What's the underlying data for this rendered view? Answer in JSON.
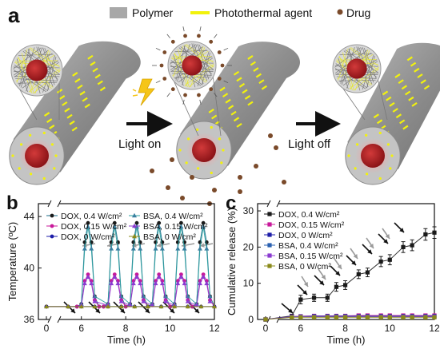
{
  "panels": {
    "a": {
      "letter": "a",
      "legend": [
        {
          "label": "Polymer",
          "color": "#a8a8a8",
          "icon": "gray-rectangle"
        },
        {
          "label": "Photothermal agent",
          "color": "#f2f20c",
          "icon": "yellow-dash"
        },
        {
          "label": "Drug",
          "color": "#7a4a2a",
          "icon": "brown-dot"
        }
      ],
      "step_labels": [
        "Light on",
        "Light off"
      ],
      "colors": {
        "fiber": "#8d8d8d",
        "fiber_end": "#b5b5b5",
        "core": "#b01f26",
        "agent": "#f2f20c",
        "drug": "#7a4a2a",
        "lightning": "#f5c518"
      }
    },
    "b": {
      "letter": "b"
    },
    "c": {
      "letter": "c"
    }
  },
  "chart_data": [
    {
      "panel": "b",
      "type": "line",
      "xlabel": "Time (h)",
      "ylabel": "Temperature (ºC)",
      "x_ticks": [
        0,
        6,
        8,
        10,
        12
      ],
      "y_ticks": [
        36,
        40,
        44
      ],
      "xlim": [
        0,
        12
      ],
      "ylim": [
        36,
        45
      ],
      "axis_break": "x between 0 and 6",
      "legend_position": "top",
      "series": [
        {
          "name": "DOX, 0.4 W/cm²",
          "marker": "circle",
          "color": "#1a1a1a",
          "line_color": "#1a6e8a",
          "x": [
            0,
            5.4,
            5.8,
            6.0,
            6.15,
            6.3,
            6.45,
            6.6,
            6.8,
            7.0,
            7.2,
            7.35,
            7.5,
            7.65,
            7.8,
            8.0,
            8.2,
            8.35,
            8.5,
            8.65,
            8.8,
            9.0,
            9.2,
            9.35,
            9.5,
            9.65,
            9.8,
            10.0,
            10.2,
            10.35,
            10.5,
            10.65,
            10.8,
            11.0,
            11.2,
            11.35,
            11.5,
            11.65,
            11.8,
            12.0
          ],
          "y": [
            37.0,
            37.0,
            37.0,
            37.2,
            42.0,
            43.5,
            42.0,
            37.8,
            37.0,
            37.0,
            37.2,
            42.0,
            43.5,
            42.0,
            37.8,
            37.0,
            37.2,
            42.0,
            43.5,
            42.0,
            37.8,
            37.0,
            37.2,
            42.0,
            43.5,
            42.0,
            37.8,
            37.0,
            37.2,
            42.0,
            43.5,
            42.0,
            37.8,
            37.0,
            37.2,
            42.0,
            43.5,
            42.0,
            37.8,
            37.0
          ]
        },
        {
          "name": "DOX, 0.15 W/cm²",
          "marker": "circle",
          "color": "#c8189a",
          "line_color": "#c8189a",
          "x": [
            0,
            5.4,
            5.8,
            6.0,
            6.15,
            6.3,
            6.45,
            6.6,
            6.8,
            7.0,
            7.2,
            7.35,
            7.5,
            7.65,
            7.8,
            8.0,
            8.2,
            8.35,
            8.5,
            8.65,
            8.8,
            9.0,
            9.2,
            9.35,
            9.5,
            9.65,
            9.8,
            10.0,
            10.2,
            10.35,
            10.5,
            10.65,
            10.8,
            11.0,
            11.2,
            11.35,
            11.5,
            11.65,
            11.8,
            12.0
          ],
          "y": [
            37.0,
            37.0,
            37.0,
            37.1,
            39.0,
            39.5,
            39.0,
            37.5,
            37.0,
            37.0,
            37.1,
            39.0,
            39.5,
            39.0,
            37.5,
            37.0,
            37.1,
            39.0,
            39.5,
            39.0,
            37.5,
            37.0,
            37.1,
            39.0,
            39.5,
            39.0,
            37.5,
            37.0,
            37.1,
            39.0,
            39.5,
            39.0,
            37.5,
            37.0,
            37.1,
            39.0,
            39.5,
            39.0,
            37.5,
            37.0
          ]
        },
        {
          "name": "DOX, 0 W/cm²",
          "marker": "circle",
          "color": "#1e1ea8",
          "line_color": "#1e1ea8",
          "x": [
            0,
            5.4,
            6.0,
            6.6,
            7.2,
            7.8,
            8.4,
            9.0,
            9.6,
            10.2,
            10.8,
            11.4,
            12.0
          ],
          "y": [
            37.0,
            37.0,
            37.0,
            37.0,
            37.0,
            37.0,
            37.0,
            37.0,
            37.0,
            37.0,
            37.0,
            37.0,
            37.0
          ]
        },
        {
          "name": "BSA, 0.4 W/cm²",
          "marker": "triangle",
          "color": "#3a7fa0",
          "line_color": "#2aa0a0",
          "x": [
            6.0,
            6.15,
            6.3,
            6.45,
            6.6,
            7.2,
            7.35,
            7.5,
            7.65,
            7.8,
            8.2,
            8.35,
            8.5,
            8.65,
            8.8,
            9.2,
            9.35,
            9.5,
            9.65,
            9.8,
            10.2,
            10.35,
            10.5,
            10.65,
            10.8,
            11.2,
            11.35,
            11.5,
            11.65,
            11.8
          ],
          "y": [
            37.2,
            41.5,
            43.2,
            41.5,
            37.8,
            37.2,
            41.5,
            43.2,
            41.5,
            37.8,
            37.2,
            41.5,
            43.2,
            41.5,
            37.8,
            37.2,
            41.5,
            43.2,
            41.5,
            37.8,
            37.2,
            41.5,
            43.2,
            41.5,
            37.8,
            37.2,
            41.5,
            43.2,
            41.5,
            37.8
          ]
        },
        {
          "name": "BSA, 0.15 W/cm²",
          "marker": "triangle",
          "color": "#8a3ad0",
          "line_color": "#8a3ad0",
          "x": [
            6.0,
            6.15,
            6.3,
            6.45,
            6.6,
            7.2,
            7.35,
            7.5,
            7.65,
            7.8,
            8.2,
            8.35,
            8.5,
            8.65,
            8.8,
            9.2,
            9.35,
            9.5,
            9.65,
            9.8,
            10.2,
            10.35,
            10.5,
            10.65,
            10.8,
            11.2,
            11.35,
            11.5,
            11.65,
            11.8
          ],
          "y": [
            37.1,
            38.8,
            39.3,
            38.8,
            37.4,
            37.1,
            38.8,
            39.3,
            38.8,
            37.4,
            37.1,
            38.8,
            39.3,
            38.8,
            37.4,
            37.1,
            38.8,
            39.3,
            38.8,
            37.4,
            37.1,
            38.8,
            39.3,
            38.8,
            37.4,
            37.1,
            38.8,
            39.3,
            38.8,
            37.4
          ]
        },
        {
          "name": "BSA, 0 W/cm²",
          "marker": "triangle",
          "color": "#8a8a1a",
          "line_color": "#8a8a1a",
          "x": [
            0,
            5.4,
            6.0,
            6.6,
            7.2,
            7.8,
            8.4,
            9.0,
            9.6,
            10.2,
            10.8,
            11.4,
            12.0
          ],
          "y": [
            37.0,
            37.0,
            37.0,
            37.0,
            37.0,
            37.0,
            37.0,
            37.0,
            37.0,
            37.0,
            37.0,
            37.0,
            37.0
          ]
        }
      ],
      "arrow_colors": {
        "on": "#111111",
        "off": "#9a9a9a"
      }
    },
    {
      "panel": "c",
      "type": "line",
      "xlabel": "Time (h)",
      "ylabel": "Cumulative release (%)",
      "x_ticks": [
        0,
        6,
        8,
        10,
        12
      ],
      "y_ticks": [
        0,
        10,
        20,
        30
      ],
      "xlim": [
        0,
        12
      ],
      "ylim": [
        0,
        32
      ],
      "axis_break": "x between 0 and 6",
      "legend_position": "top-left",
      "series": [
        {
          "name": "DOX, 0.4 W/cm²",
          "marker": "square",
          "color": "#1a1a1a",
          "x": [
            0,
            5.6,
            6.0,
            6.6,
            7.2,
            7.6,
            8.0,
            8.6,
            9.0,
            9.6,
            10.0,
            10.6,
            11.0,
            11.6,
            12.0
          ],
          "y": [
            0,
            1.0,
            5.5,
            6.0,
            6.0,
            9.0,
            9.5,
            12.5,
            13.0,
            16.0,
            16.5,
            20.0,
            20.5,
            23.5,
            24.0
          ],
          "err": [
            0,
            0.4,
            1.2,
            1.0,
            1.0,
            1.2,
            1.2,
            1.2,
            1.2,
            1.4,
            1.4,
            1.5,
            1.5,
            1.6,
            1.6
          ]
        },
        {
          "name": "DOX, 0.15 W/cm²",
          "marker": "square",
          "color": "#c8189a",
          "x": [
            0,
            5.6,
            6.0,
            6.6,
            7.2,
            7.6,
            8.0,
            8.6,
            9.0,
            9.6,
            10.0,
            10.6,
            11.0,
            11.6,
            12.0
          ],
          "y": [
            0,
            0.8,
            0.9,
            1.0,
            1.0,
            1.0,
            1.0,
            1.1,
            1.1,
            1.1,
            1.1,
            1.1,
            1.1,
            1.1,
            1.1
          ]
        },
        {
          "name": "DOX, 0 W/cm²",
          "marker": "square",
          "color": "#1e1ea8",
          "x": [
            0,
            5.6,
            6.0,
            6.6,
            7.2,
            7.6,
            8.0,
            8.6,
            9.0,
            9.6,
            10.0,
            10.6,
            11.0,
            11.6,
            12.0
          ],
          "y": [
            0,
            0.8,
            0.8,
            0.9,
            0.9,
            0.9,
            0.9,
            0.9,
            0.9,
            0.9,
            0.9,
            0.9,
            0.9,
            0.9,
            0.9
          ]
        },
        {
          "name": "BSA, 0.4 W/cm²",
          "marker": "square",
          "color": "#2a60b0",
          "x": [
            0,
            5.6,
            6.0,
            6.6,
            7.2,
            7.6,
            8.0,
            8.6,
            9.0,
            9.6,
            10.0,
            10.6,
            11.0,
            11.6,
            12.0
          ],
          "y": [
            0,
            0.7,
            0.8,
            0.8,
            0.8,
            0.8,
            0.8,
            0.8,
            0.8,
            0.8,
            0.8,
            0.8,
            0.8,
            0.8,
            0.8
          ]
        },
        {
          "name": "BSA, 0.15 W/cm²",
          "marker": "square",
          "color": "#8a3ad0",
          "x": [
            0,
            5.6,
            6.0,
            6.6,
            7.2,
            7.6,
            8.0,
            8.6,
            9.0,
            9.6,
            10.0,
            10.6,
            11.0,
            11.6,
            12.0
          ],
          "y": [
            0,
            0.7,
            0.7,
            0.7,
            0.7,
            0.7,
            0.7,
            0.7,
            0.7,
            0.7,
            0.7,
            0.7,
            0.7,
            0.7,
            0.7
          ]
        },
        {
          "name": "BSA, 0 W/cm²",
          "marker": "square",
          "color": "#8a8a1a",
          "x": [
            0,
            5.6,
            6.0,
            6.6,
            7.2,
            7.6,
            8.0,
            8.6,
            9.0,
            9.6,
            10.0,
            10.6,
            11.0,
            11.6,
            12.0
          ],
          "y": [
            0,
            0.6,
            0.6,
            0.6,
            0.6,
            0.6,
            0.6,
            0.6,
            0.6,
            0.6,
            0.6,
            0.6,
            0.6,
            0.6,
            0.6
          ]
        }
      ],
      "arrow_colors": {
        "on": "#111111",
        "off": "#9a9a9a"
      }
    }
  ]
}
